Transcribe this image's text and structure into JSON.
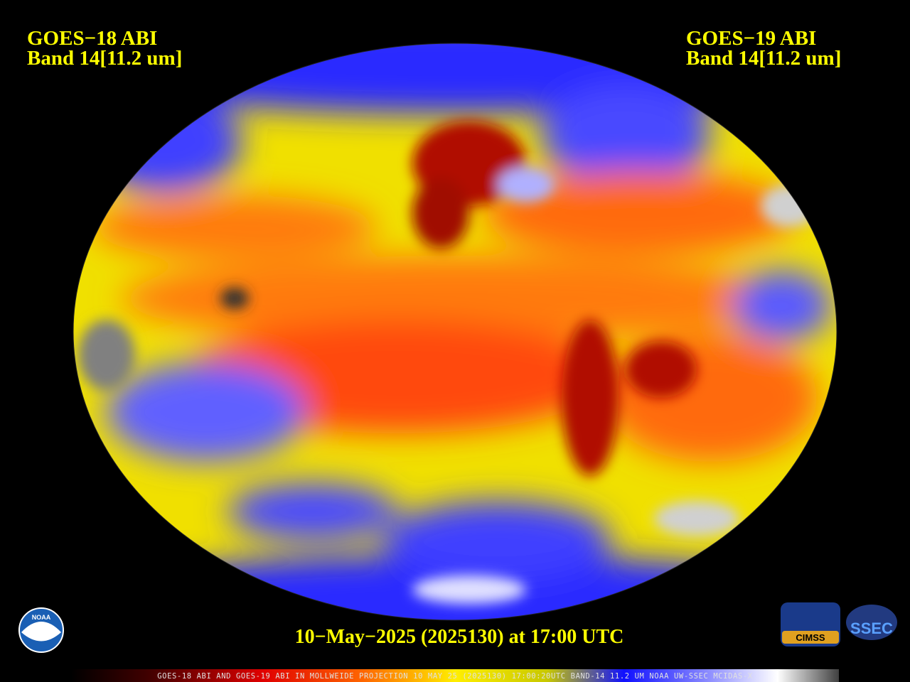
{
  "header": {
    "left": {
      "line1": "GOES−18 ABI",
      "line2": "Band 14[11.2 um]"
    },
    "right": {
      "line1": "GOES−19 ABI",
      "line2": "Band 14[11.2 um]"
    }
  },
  "date_line": "10−May−2025 (2025130) at 17:00 UTC",
  "footer_caption": "GOES-18 ABI AND GOES-19 ABI IN MOLLWEIDE PROJECTION 10 MAY 25 (2025130) 17:00:20UTC BAND-14 11.2 UM NOAA UW-SSEC MCIDAS-X",
  "logos": {
    "noaa": "NOAA",
    "cimss": "CIMSS",
    "ssec": "SSEC"
  }
}
